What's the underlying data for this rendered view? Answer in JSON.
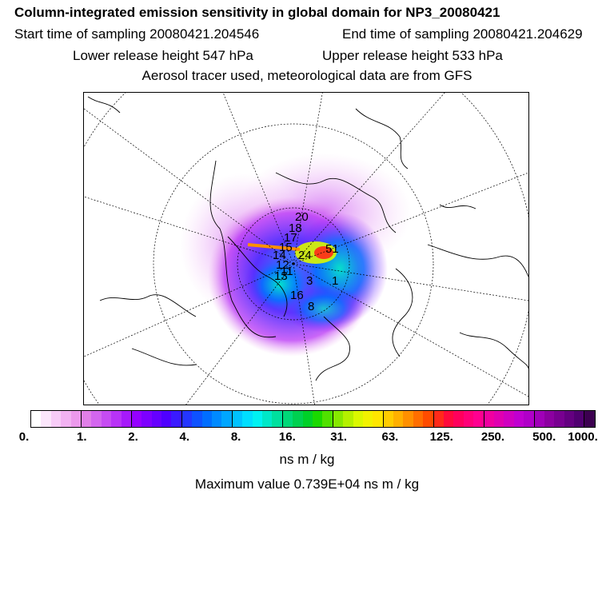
{
  "title": "Column-integrated emission sensitivity in global domain for NP3_20080421",
  "start_label": "Start time of sampling 20080421.204546",
  "end_label": "End time of sampling 20080421.204629",
  "lower_label": "Lower release height  547 hPa",
  "upper_label": "Upper release height  533 hPa",
  "tracer_label": "Aerosol tracer used, meteorological data are from GFS",
  "map": {
    "labels": [
      "20",
      "18",
      "17",
      "15",
      "14",
      "12",
      "24",
      "51",
      "13",
      "11",
      "1",
      "3",
      "16",
      "8"
    ]
  },
  "colorbar": {
    "colors": [
      "#ffffff",
      "#fbe6fb",
      "#f7ccf7",
      "#f2b2f2",
      "#ec99ec",
      "#e07fe8",
      "#d366ee",
      "#c64cf2",
      "#b833f6",
      "#a61afa",
      "#9500ff",
      "#7d00ff",
      "#6600ff",
      "#4f00ff",
      "#3a1aff",
      "#2436ff",
      "#0e52ff",
      "#006eff",
      "#008aff",
      "#00a6ff",
      "#00c2ff",
      "#00deff",
      "#00f2f2",
      "#00e8c8",
      "#00e09e",
      "#00d878",
      "#00d050",
      "#00d028",
      "#1ad800",
      "#50e000",
      "#86e800",
      "#b4f000",
      "#daf800",
      "#f2f200",
      "#ffe600",
      "#ffcc00",
      "#ffb000",
      "#ff9000",
      "#ff6e00",
      "#ff4c00",
      "#ff2a1a",
      "#ff0a3c",
      "#ff005c",
      "#ff0078",
      "#ff0090",
      "#f000a0",
      "#e000b0",
      "#d000c0",
      "#c000d0",
      "#b000c8",
      "#a000b8",
      "#8c00a0",
      "#780090",
      "#640080",
      "#500070",
      "#3c0050"
    ],
    "ticks": [
      "0.",
      "1.",
      "2.",
      "4.",
      "8.",
      "16.",
      "31.",
      "63.",
      "125.",
      "250.",
      "500.",
      "1000."
    ]
  },
  "units": "ns m / kg",
  "max_value_label": "Maximum value  0.739E+04 ns m / kg"
}
